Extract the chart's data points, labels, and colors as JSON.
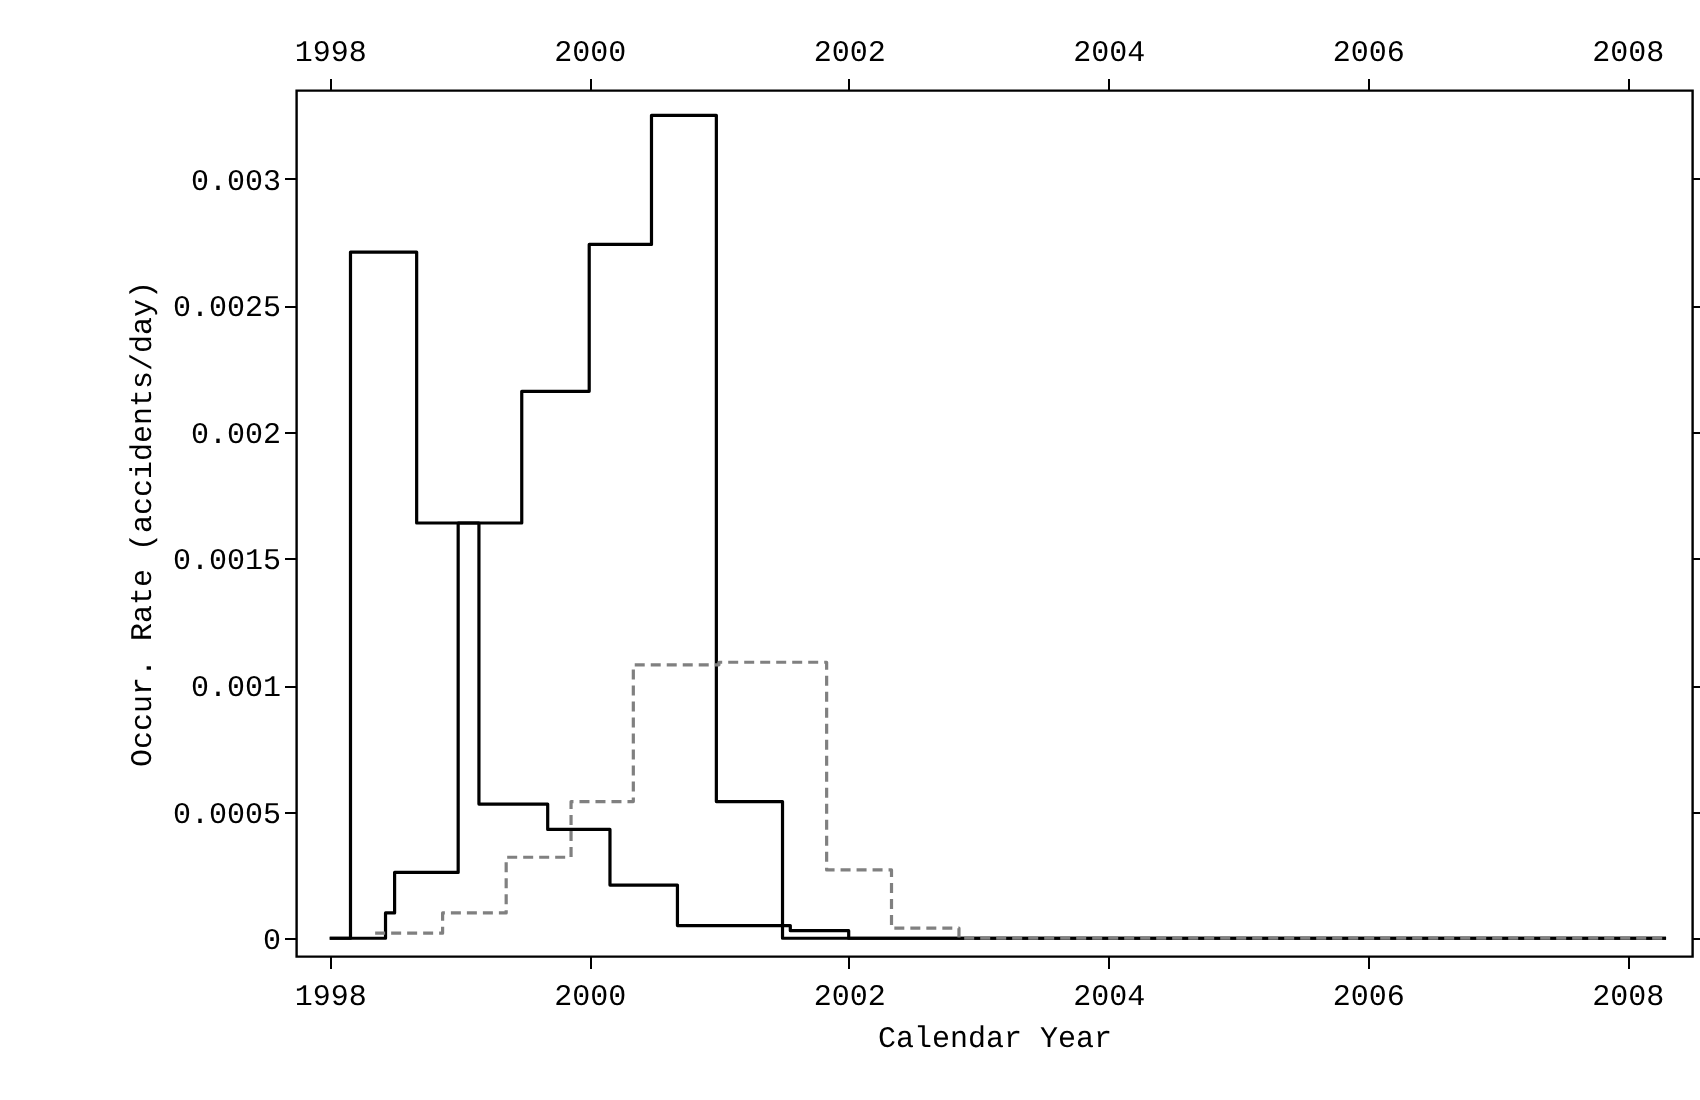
{
  "chart_data": {
    "type": "step",
    "xlabel": "Calendar Year",
    "ylabel": "Occur. Rate (accidents/day)",
    "xlim": [
      1997.74,
      2008.5
    ],
    "xticks": [
      1998,
      2000,
      2002,
      2004,
      2006,
      2008
    ],
    "x2lim": [
      1997.74,
      2008.5
    ],
    "x2ticks": [
      1998,
      2000,
      2002,
      2004,
      2006,
      2008
    ],
    "ylim": [
      -7e-05,
      0.00335
    ],
    "yticks": [
      {
        "value": 0,
        "label": "0"
      },
      {
        "value": 0.0005,
        "label": "0.0005"
      },
      {
        "value": 0.001,
        "label": "0.001"
      },
      {
        "value": 0.0015,
        "label": "0.0015"
      },
      {
        "value": 0.002,
        "label": "0.002"
      },
      {
        "value": 0.0025,
        "label": "0.0025"
      },
      {
        "value": 0.003,
        "label": "0.003"
      }
    ],
    "grid": false,
    "series": [
      {
        "color": "#000000",
        "line_style": "solid",
        "x": [
          1998.0,
          1998.16,
          1998.67,
          1999.48,
          2000.0,
          2000.48,
          2000.98,
          2001.49,
          2008.3
        ],
        "values": [
          0,
          0.00271,
          0.00164,
          0.00216,
          0.00274,
          0.00325,
          0.00054,
          0,
          0
        ]
      },
      {
        "color": "#000000",
        "line_style": "solid",
        "x": [
          1998.0,
          1998.43,
          1998.5,
          1998.99,
          1999.15,
          1999.68,
          2000.16,
          2000.68,
          2001.55,
          2002.0,
          2008.3
        ],
        "values": [
          0,
          0.0001,
          0.00026,
          0.00164,
          0.00053,
          0.00043,
          0.00021,
          5e-05,
          3e-05,
          0,
          0
        ]
      },
      {
        "color": "#808080",
        "line_style": "dashed",
        "x": [
          1998.35,
          1998.87,
          1999.36,
          1999.86,
          2000.34,
          2001.0,
          2001.83,
          2002.33,
          2002.85,
          2008.3
        ],
        "values": [
          2e-05,
          0.0001,
          0.00032,
          0.00054,
          0.00108,
          0.00109,
          0.00027,
          4e-05,
          0,
          0
        ]
      }
    ]
  }
}
